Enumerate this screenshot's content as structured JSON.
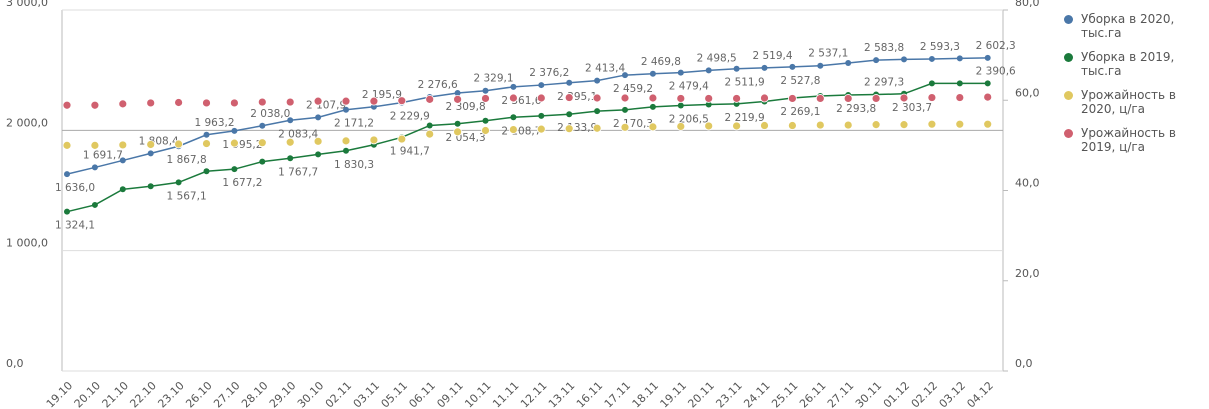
{
  "chart_data": {
    "type": "line",
    "categories": [
      "19.10",
      "20.10",
      "21.10",
      "22.10",
      "23.10",
      "26.10",
      "27.10",
      "28.10",
      "29.10",
      "30.10",
      "02.11",
      "03.11",
      "05.11",
      "06.11",
      "09.11",
      "10.11",
      "11.11",
      "12.11",
      "13.11",
      "16.11",
      "17.11",
      "18.11",
      "19.11",
      "20.11",
      "23.11",
      "24.11",
      "25.11",
      "26.11",
      "27.11",
      "30.11",
      "01.12",
      "02.12",
      "03.12",
      "04.12"
    ],
    "ylim": [
      0,
      3000
    ],
    "yticks": [
      {
        "value": 0,
        "label": "0,0"
      },
      {
        "value": 1000,
        "label": "1 000,0"
      },
      {
        "value": 2000,
        "label": "2 000,0"
      },
      {
        "value": 3000,
        "label": "3 000,0"
      }
    ],
    "y2lim": [
      0,
      80
    ],
    "y2ticks": [
      {
        "value": 0,
        "label": "0,0"
      },
      {
        "value": 20,
        "label": "20,0"
      },
      {
        "value": 40,
        "label": "40,0"
      },
      {
        "value": 60,
        "label": "60,0"
      },
      {
        "value": 80,
        "label": "80,0"
      }
    ],
    "grid": true,
    "legend": "right",
    "series": [
      {
        "name": "Уборка в 2020, тыс.га",
        "color": "#4a77a8",
        "style": "line",
        "values": [
          1636.0,
          1691.7,
          1750.0,
          1808.4,
          1867.8,
          1963.2,
          1995.2,
          2038.0,
          2083.4,
          2107.9,
          2171.2,
          2195.9,
          2229.9,
          2276.6,
          2309.8,
          2329.1,
          2361.6,
          2376.2,
          2395.1,
          2413.4,
          2459.2,
          2469.8,
          2479.4,
          2498.5,
          2511.9,
          2519.4,
          2527.8,
          2537.1,
          2560.0,
          2583.8,
          2590.0,
          2593.3,
          2598.0,
          2602.3
        ],
        "value_labels": [
          "1 636,0",
          "1 691,7",
          null,
          "1 808,4",
          "1 867,8",
          "1 963,2",
          "1 995,2",
          "2 038,0",
          "2 083,4",
          "2 107,9",
          "2 171,2",
          "2 195,9",
          "2 229,9",
          "2 276,6",
          "2 309,8",
          "2 329,1",
          "2 361,6",
          "2 376,2",
          "2 395,1",
          "2 413,4",
          "2 459,2",
          "2 469,8",
          "2 479,4",
          "2 498,5",
          "2 511,9",
          "2 519,4",
          "2 527,8",
          "2 537,1",
          null,
          "2 583,8",
          null,
          "2 593,3",
          null,
          "2 602,3"
        ]
      },
      {
        "name": "Уборка в 2019, тыс.га",
        "color": "#1b7a3c",
        "style": "line",
        "values": [
          1324.1,
          1380,
          1510,
          1535,
          1567.1,
          1660,
          1677.2,
          1740,
          1767.7,
          1800,
          1830.3,
          1880,
          1941.7,
          2040,
          2054.3,
          2080,
          2108.7,
          2120,
          2133.9,
          2160,
          2170.3,
          2195,
          2206.5,
          2215,
          2219.9,
          2240,
          2269.1,
          2285,
          2293.8,
          2297.3,
          2303.7,
          2390,
          2390,
          2390.6
        ],
        "value_labels": [
          "1 324,1",
          null,
          null,
          null,
          "1 567,1",
          null,
          "1 677,2",
          null,
          "1 767,7",
          null,
          "1 830,3",
          null,
          "1 941,7",
          null,
          "2 054,3",
          null,
          "2 108,7",
          null,
          "2 133,9",
          null,
          "2 170,3",
          null,
          "2 206,5",
          null,
          "2 219,9",
          null,
          "2 269,1",
          null,
          "2 293,8",
          "2 297,3",
          "2 303,7",
          null,
          null,
          "2 390,6"
        ]
      },
      {
        "name": "Урожайность в 2020, ц/га",
        "color": "#e0c860",
        "style": "points",
        "axis": "y2",
        "values": [
          50.0,
          50.0,
          50.1,
          50.2,
          50.3,
          50.4,
          50.5,
          50.6,
          50.7,
          50.9,
          51.0,
          51.2,
          51.4,
          52.5,
          53.0,
          53.3,
          53.5,
          53.6,
          53.7,
          53.8,
          54.0,
          54.1,
          54.2,
          54.3,
          54.3,
          54.4,
          54.4,
          54.5,
          54.5,
          54.6,
          54.6,
          54.7,
          54.7,
          54.7
        ]
      },
      {
        "name": "Урожайность в 2019, ц/га",
        "color": "#d0606f",
        "style": "points",
        "axis": "y2",
        "values": [
          58.9,
          58.9,
          59.2,
          59.4,
          59.5,
          59.4,
          59.4,
          59.6,
          59.6,
          59.8,
          59.8,
          59.8,
          59.9,
          60.2,
          60.2,
          60.4,
          60.5,
          60.5,
          60.6,
          60.5,
          60.5,
          60.5,
          60.4,
          60.4,
          60.4,
          60.5,
          60.4,
          60.4,
          60.4,
          60.4,
          60.5,
          60.6,
          60.6,
          60.7
        ]
      }
    ]
  }
}
